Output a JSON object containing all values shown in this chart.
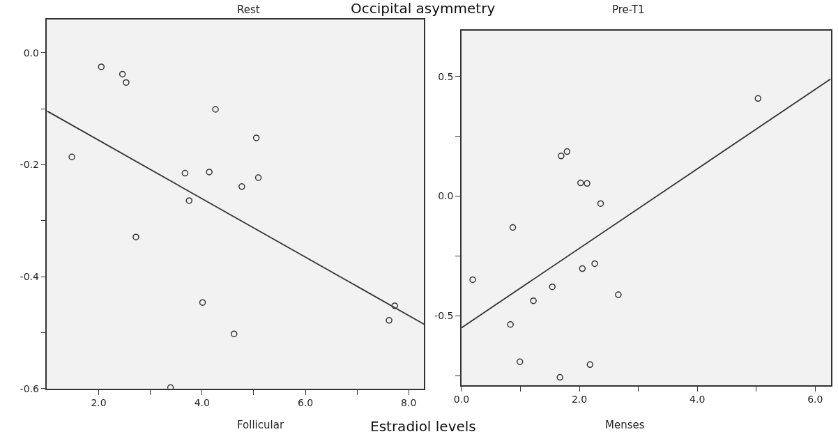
{
  "chart_data": [
    {
      "type": "scatter",
      "title": "Rest",
      "xlabel": "Follicular",
      "annotations": [
        "Occipital asymmetry",
        "Estradiol levels"
      ],
      "marker": "circle",
      "grid": false,
      "xlim": [
        1.0,
        8.3
      ],
      "xticks": [
        {
          "value": 2,
          "label": "2.0"
        },
        {
          "value": 3,
          "label": null
        },
        {
          "value": 4,
          "label": "4.0"
        },
        {
          "value": 5,
          "label": null
        },
        {
          "value": 6,
          "label": "6.0"
        },
        {
          "value": 7,
          "label": null
        },
        {
          "value": 8,
          "label": "8.0"
        }
      ],
      "ylim": [
        -0.6,
        0.06
      ],
      "yticks": [
        {
          "value": 0,
          "label": "0.0"
        },
        {
          "value": -0.1,
          "label": null
        },
        {
          "value": -0.2,
          "label": "-0.2"
        },
        {
          "value": -0.3,
          "label": null
        },
        {
          "value": -0.4,
          "label": "-0.4"
        },
        {
          "value": -0.5,
          "label": null
        },
        {
          "value": -0.6,
          "label": "-0.6"
        }
      ],
      "series": [
        {
          "color": "#333333",
          "x": [
            2.05,
            2.46,
            2.53,
            4.26,
            5.05,
            1.48,
            3.67,
            4.14,
            5.09,
            4.77,
            3.75,
            2.72,
            4.01,
            4.62,
            3.39,
            7.73,
            7.62
          ],
          "values": [
            -0.025,
            -0.038,
            -0.053,
            -0.101,
            -0.152,
            -0.186,
            -0.215,
            -0.213,
            -0.223,
            -0.239,
            -0.264,
            -0.329,
            -0.446,
            -0.502,
            -0.598,
            -0.452,
            -0.478
          ]
        },
        {
          "type": "line",
          "color": "#333333",
          "marker": "none",
          "x": [
            1.0,
            8.3
          ],
          "values": [
            -0.104,
            -0.485
          ]
        }
      ]
    },
    {
      "type": "scatter",
      "title": "Pre-T1",
      "xlabel": "Menses",
      "marker": "circle",
      "grid": false,
      "xlim": [
        0,
        6.27
      ],
      "xticks": [
        {
          "value": 0,
          "label": "0.0"
        },
        {
          "value": 1,
          "label": null
        },
        {
          "value": 2,
          "label": "2.0"
        },
        {
          "value": 3,
          "label": null
        },
        {
          "value": 4,
          "label": "4.0"
        },
        {
          "value": 5,
          "label": null
        },
        {
          "value": 6,
          "label": "6.0"
        }
      ],
      "ylim": [
        -0.79,
        0.69
      ],
      "yticks": [
        {
          "value": 0.5,
          "label": "0.5"
        },
        {
          "value": 0.25,
          "label": null
        },
        {
          "value": 0,
          "label": "0.0"
        },
        {
          "value": -0.25,
          "label": null
        },
        {
          "value": -0.5,
          "label": "-0.5"
        },
        {
          "value": -0.75,
          "label": null
        }
      ],
      "series": [
        {
          "color": "#333333",
          "x": [
            5.03,
            1.69,
            1.79,
            2.02,
            2.13,
            2.36,
            0.87,
            0.19,
            2.05,
            2.26,
            1.54,
            1.22,
            2.66,
            0.83,
            0.99,
            2.18,
            1.67
          ],
          "values": [
            0.408,
            0.168,
            0.186,
            0.055,
            0.053,
            -0.031,
            -0.131,
            -0.349,
            -0.303,
            -0.282,
            -0.379,
            -0.437,
            -0.412,
            -0.536,
            -0.692,
            -0.704,
            -0.757
          ]
        },
        {
          "type": "line",
          "color": "#333333",
          "marker": "none",
          "x": [
            0,
            6.26
          ],
          "values": [
            -0.55,
            0.489
          ]
        }
      ]
    }
  ]
}
